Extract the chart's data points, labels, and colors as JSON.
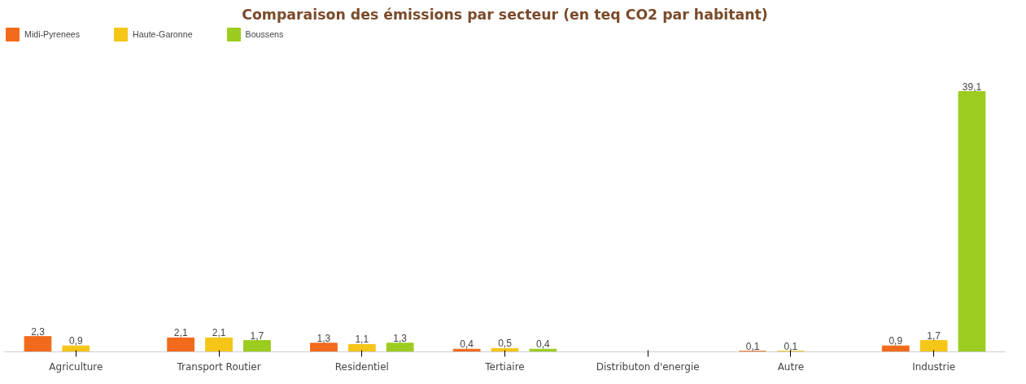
{
  "chart_data": {
    "type": "bar",
    "title": "Comparaison des émissions par secteur (en teq CO2 par habitant)",
    "categories": [
      "Agriculture",
      "Transport Routier",
      "Residentiel",
      "Tertiaire",
      "Distributon d'energie",
      "Autre",
      "Industrie"
    ],
    "series": [
      {
        "name": "Midi-Pyrenees",
        "color": "#f26a1b",
        "values": [
          2.3,
          2.1,
          1.3,
          0.4,
          null,
          0.1,
          0.9
        ],
        "value_labels": [
          "2,3",
          "2,1",
          "1,3",
          "0,4",
          null,
          "0,1",
          "0,9"
        ]
      },
      {
        "name": "Haute-Garonne",
        "color": "#f5c518",
        "values": [
          0.9,
          2.1,
          1.1,
          0.5,
          null,
          0.1,
          1.7
        ],
        "value_labels": [
          "0,9",
          "2,1",
          "1,1",
          "0,5",
          null,
          "0,1",
          "1,7"
        ]
      },
      {
        "name": "Boussens",
        "color": "#9ccc1f",
        "values": [
          null,
          1.7,
          1.3,
          0.4,
          null,
          null,
          39.1
        ],
        "value_labels": [
          null,
          "1,7",
          "1,3",
          "0,4",
          null,
          null,
          "39,1"
        ]
      }
    ],
    "legend": "top left"
  }
}
